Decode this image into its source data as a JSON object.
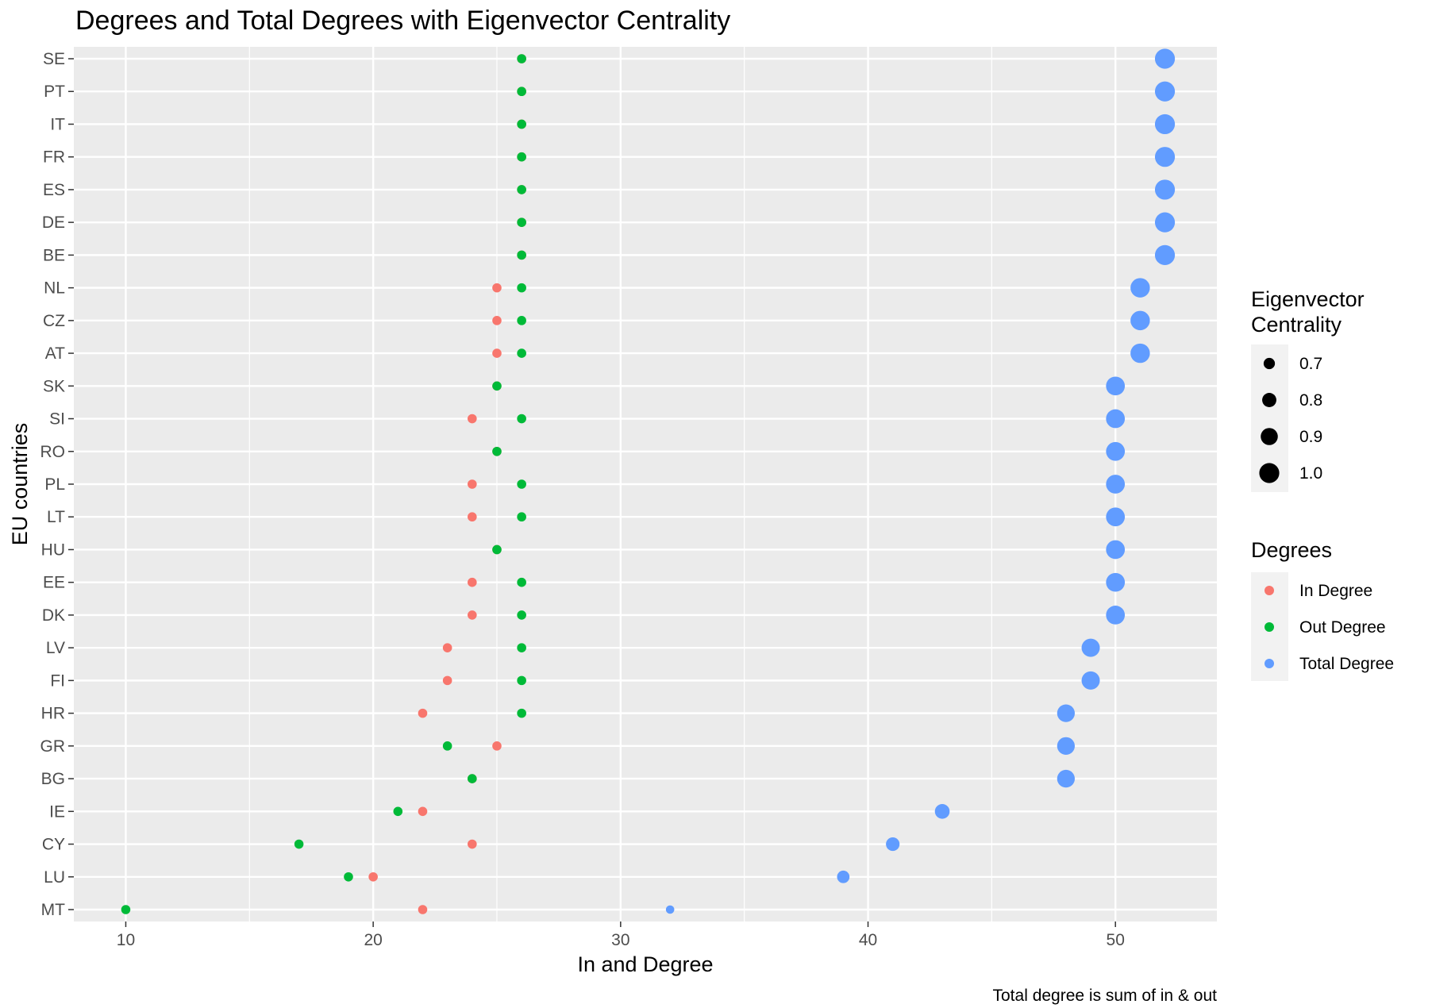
{
  "chart_data": {
    "type": "scatter",
    "title": "Degrees and Total Degrees with Eigenvector Centrality",
    "xlabel": "In and Degree",
    "ylabel": "EU countries",
    "caption": "Total degree is sum of in & out",
    "xlim": [
      7.9,
      54.1
    ],
    "x_ticks": [
      10,
      20,
      30,
      40,
      50
    ],
    "grid": true,
    "legend_position": "right",
    "countries": [
      "SE",
      "PT",
      "IT",
      "FR",
      "ES",
      "DE",
      "BE",
      "NL",
      "CZ",
      "AT",
      "SK",
      "SI",
      "RO",
      "PL",
      "LT",
      "HU",
      "EE",
      "DK",
      "LV",
      "FI",
      "HR",
      "GR",
      "BG",
      "IE",
      "CY",
      "LU",
      "MT"
    ],
    "series": [
      {
        "name": "In Degree",
        "color": "#F8766D",
        "values": [
          26,
          26,
          26,
          26,
          26,
          26,
          26,
          25,
          25,
          25,
          25,
          24,
          25,
          24,
          24,
          25,
          24,
          24,
          23,
          23,
          22,
          25,
          24,
          22,
          24,
          20,
          22
        ]
      },
      {
        "name": "Out Degree",
        "color": "#00BA38",
        "values": [
          26,
          26,
          26,
          26,
          26,
          26,
          26,
          26,
          26,
          26,
          25,
          26,
          25,
          26,
          26,
          25,
          26,
          26,
          26,
          26,
          26,
          23,
          24,
          21,
          17,
          19,
          10
        ]
      },
      {
        "name": "Total Degree",
        "color": "#619CFF",
        "values": [
          52,
          52,
          52,
          52,
          52,
          52,
          52,
          51,
          51,
          51,
          50,
          50,
          50,
          50,
          50,
          50,
          50,
          50,
          49,
          49,
          48,
          48,
          48,
          43,
          41,
          39,
          32
        ],
        "eigenvector_centrality": [
          1.0,
          1.0,
          1.0,
          1.0,
          1.0,
          1.0,
          1.0,
          0.98,
          0.98,
          0.98,
          0.96,
          0.96,
          0.96,
          0.96,
          0.96,
          0.96,
          0.96,
          0.96,
          0.94,
          0.94,
          0.92,
          0.92,
          0.92,
          0.82,
          0.78,
          0.74,
          0.6
        ]
      }
    ],
    "size_legend": {
      "title": [
        "Eigenvector",
        "Centrality"
      ],
      "values": [
        0.7,
        0.8,
        0.9,
        1.0
      ],
      "labels": [
        "0.7",
        "0.8",
        "0.9",
        "1.0"
      ]
    },
    "color_legend": {
      "title": "Degrees",
      "labels": [
        "In Degree",
        "Out Degree",
        "Total Degree"
      ]
    }
  }
}
